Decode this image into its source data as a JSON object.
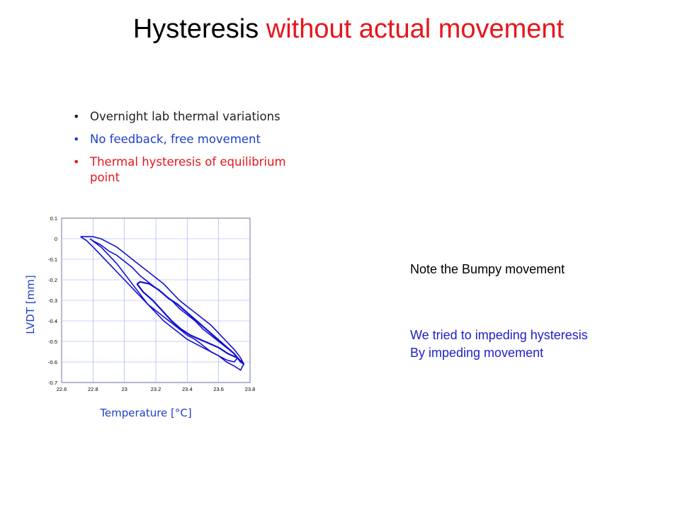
{
  "slide": {
    "title_main": "Hysteresis",
    "title_accent": "without actual movement",
    "bullets": [
      {
        "text": "Overnight lab thermal variations",
        "color": "#222222"
      },
      {
        "text": "No feedback, free movement",
        "color": "#1f3fc7"
      },
      {
        "text": "Thermal hysteresis of equilibrium point",
        "color": "#e8151b"
      }
    ],
    "note": "Note the Bumpy movement",
    "note2_line1": "We tried to impeding hysteresis",
    "note2_line2": "By impeding movement"
  },
  "chart_data": {
    "type": "line",
    "xlabel": "Temperature [°C]",
    "ylabel": "LVDT [mm]",
    "xlim": [
      22.6,
      23.8
    ],
    "ylim": [
      -0.7,
      0.1
    ],
    "xticks": [
      "22.6",
      "22.8",
      "23",
      "23.2",
      "23.4",
      "23.6",
      "23.8"
    ],
    "yticks": [
      "0.1",
      "0",
      "-0.1",
      "-0.2",
      "-0.3",
      "-0.4",
      "-0.5",
      "-0.6",
      "-0.7"
    ],
    "grid": true,
    "series_color": "#1010d0",
    "series": [
      {
        "x": [
          22.72,
          22.76,
          22.8,
          22.85,
          22.9,
          22.95,
          23.0,
          23.05,
          23.1,
          23.15,
          23.2,
          23.25,
          23.3,
          23.35,
          23.4,
          23.45,
          23.5,
          23.55,
          23.6,
          23.65,
          23.7,
          23.74,
          23.76,
          23.74,
          23.7,
          23.65,
          23.6,
          23.55,
          23.5,
          23.45,
          23.4,
          23.35,
          23.3,
          23.25,
          23.2,
          23.15,
          23.1,
          23.05,
          23.0,
          22.95,
          22.9,
          22.85,
          22.8,
          22.76,
          22.72
        ],
        "y": [
          0.01,
          -0.01,
          -0.04,
          -0.08,
          -0.12,
          -0.16,
          -0.2,
          -0.24,
          -0.28,
          -0.32,
          -0.35,
          -0.38,
          -0.41,
          -0.44,
          -0.47,
          -0.49,
          -0.52,
          -0.55,
          -0.57,
          -0.6,
          -0.62,
          -0.64,
          -0.61,
          -0.58,
          -0.54,
          -0.5,
          -0.46,
          -0.42,
          -0.39,
          -0.36,
          -0.33,
          -0.3,
          -0.26,
          -0.22,
          -0.19,
          -0.16,
          -0.13,
          -0.1,
          -0.07,
          -0.04,
          -0.02,
          0.0,
          0.01,
          0.01,
          0.01
        ]
      },
      {
        "x": [
          22.78,
          22.85,
          22.9,
          22.95,
          23.0,
          23.05,
          23.1,
          23.15,
          23.2,
          23.25,
          23.3,
          23.35,
          23.4,
          23.45,
          23.5,
          23.55,
          23.6,
          23.65,
          23.7,
          23.72,
          23.7,
          23.65,
          23.6,
          23.55,
          23.5,
          23.45,
          23.4,
          23.35,
          23.3,
          23.25,
          23.2,
          23.15,
          23.1,
          23.05,
          23.0,
          22.95,
          22.9,
          22.85,
          22.8,
          22.78
        ],
        "y": [
          0.0,
          -0.04,
          -0.08,
          -0.12,
          -0.17,
          -0.22,
          -0.27,
          -0.32,
          -0.36,
          -0.4,
          -0.43,
          -0.46,
          -0.49,
          -0.51,
          -0.53,
          -0.55,
          -0.57,
          -0.59,
          -0.6,
          -0.58,
          -0.56,
          -0.53,
          -0.5,
          -0.47,
          -0.44,
          -0.4,
          -0.37,
          -0.34,
          -0.3,
          -0.27,
          -0.24,
          -0.21,
          -0.18,
          -0.14,
          -0.11,
          -0.08,
          -0.06,
          -0.03,
          -0.01,
          0.0
        ]
      },
      {
        "x": [
          23.08,
          23.12,
          23.18,
          23.24,
          23.3,
          23.36,
          23.42,
          23.48,
          23.54,
          23.6,
          23.66,
          23.72,
          23.76,
          23.74,
          23.7,
          23.64,
          23.58,
          23.52,
          23.46,
          23.4,
          23.34,
          23.28,
          23.22,
          23.16,
          23.1,
          23.08
        ],
        "y": [
          -0.22,
          -0.26,
          -0.3,
          -0.35,
          -0.4,
          -0.44,
          -0.47,
          -0.49,
          -0.51,
          -0.53,
          -0.56,
          -0.58,
          -0.61,
          -0.6,
          -0.56,
          -0.52,
          -0.48,
          -0.44,
          -0.4,
          -0.36,
          -0.32,
          -0.29,
          -0.25,
          -0.22,
          -0.21,
          -0.22
        ]
      }
    ]
  }
}
